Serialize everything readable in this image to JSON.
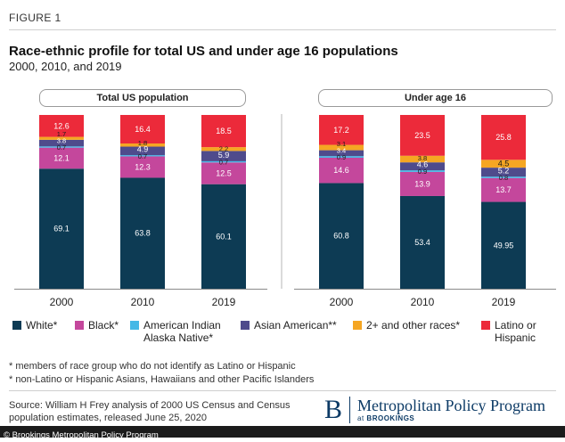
{
  "figure_label": "FIGURE 1",
  "title": "Race-ethnic profile for total US and under age 16 populations",
  "subtitle": "2000, 2010, and 2019",
  "notes": [
    "* members of race group who do not identify as Latino or Hispanic",
    "* non-Latino or Hispanic Asians, Hawaiians and other Pacific Islanders"
  ],
  "source": "Source: William H Frey analysis of 2000 US Census and Census population estimates, released June 25, 2020",
  "logo": {
    "mark": "B",
    "name": "Metropolitan Policy Program",
    "sub_prefix": "at ",
    "sub_name": "BROOKINGS"
  },
  "footer": "© Brookings Metropolitan Policy Program",
  "legend": [
    {
      "label": "White*",
      "color": "#0d3b54"
    },
    {
      "label": "Black*",
      "color": "#c4479c"
    },
    {
      "label": "American Indian Alaska Native*",
      "color": "#45b8e6"
    },
    {
      "label": "Asian American**",
      "color": "#4f4b8c"
    },
    {
      "label": "2+ and other races*",
      "color": "#f5a623"
    },
    {
      "label": "Latino or Hispanic",
      "color": "#ec2a3a"
    }
  ],
  "chart_data": [
    {
      "type": "bar",
      "stacked": true,
      "panel_title": "Total US population",
      "categories": [
        "2000",
        "2010",
        "2019"
      ],
      "series": [
        {
          "name": "White*",
          "color": "#0d3b54",
          "values": [
            69.1,
            63.8,
            60.1
          ],
          "labels": [
            "69.1",
            "63.8",
            "60.1"
          ]
        },
        {
          "name": "Black*",
          "color": "#c4479c",
          "values": [
            12.1,
            12.3,
            12.5
          ],
          "labels": [
            "12.1",
            "12.3",
            "12.5"
          ]
        },
        {
          "name": "American Indian Alaska Native*",
          "color": "#45b8e6",
          "values": [
            0.7,
            0.7,
            0.7
          ],
          "labels": [
            "0.7",
            "0.7",
            "0.7"
          ]
        },
        {
          "name": "Asian American**",
          "color": "#4f4b8c",
          "values": [
            3.8,
            4.9,
            5.9
          ],
          "labels": [
            "3.8",
            "4.9",
            "5.9"
          ]
        },
        {
          "name": "2+ and other races*",
          "color": "#f5a623",
          "values": [
            1.7,
            1.8,
            2.2
          ],
          "labels": [
            "1.7",
            "1.8",
            "2.2"
          ]
        },
        {
          "name": "Latino or Hispanic",
          "color": "#ec2a3a",
          "values": [
            12.6,
            16.4,
            18.5
          ],
          "labels": [
            "12.6",
            "16.4",
            "18.5"
          ]
        }
      ],
      "ylim": [
        0,
        100
      ]
    },
    {
      "type": "bar",
      "stacked": true,
      "panel_title": "Under age 16",
      "categories": [
        "2000",
        "2010",
        "2019"
      ],
      "series": [
        {
          "name": "White*",
          "color": "#0d3b54",
          "values": [
            60.8,
            53.4,
            49.95
          ],
          "labels": [
            "60.8",
            "53.4",
            "49.95"
          ]
        },
        {
          "name": "Black*",
          "color": "#c4479c",
          "values": [
            14.6,
            13.9,
            13.7
          ],
          "labels": [
            "14.6",
            "13.9",
            "13.7"
          ]
        },
        {
          "name": "American Indian Alaska Native*",
          "color": "#45b8e6",
          "values": [
            0.9,
            0.9,
            0.8
          ],
          "labels": [
            "0.9",
            "0.9",
            "0.8"
          ]
        },
        {
          "name": "Asian American**",
          "color": "#4f4b8c",
          "values": [
            3.4,
            4.6,
            5.2
          ],
          "labels": [
            "3.4",
            "4.6",
            "5.2"
          ]
        },
        {
          "name": "2+ and other races*",
          "color": "#f5a623",
          "values": [
            3.1,
            3.8,
            4.5
          ],
          "labels": [
            "3.1",
            "3.8",
            "4.5"
          ]
        },
        {
          "name": "Latino or Hispanic",
          "color": "#ec2a3a",
          "values": [
            17.2,
            23.5,
            25.8
          ],
          "labels": [
            "17.2",
            "23.5",
            "25.8"
          ]
        }
      ],
      "ylim": [
        0,
        100
      ]
    }
  ]
}
